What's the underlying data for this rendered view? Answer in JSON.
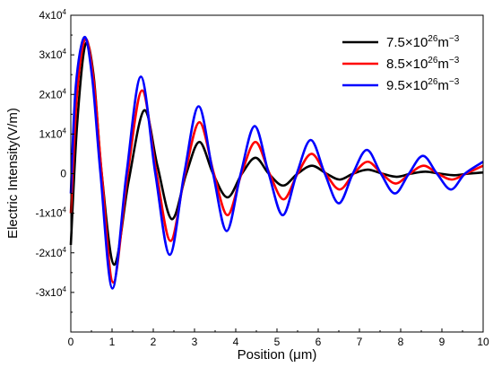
{
  "chart_data": {
    "type": "line",
    "xlabel": "Position (μm)",
    "ylabel": "Electric Intensity(V/m)",
    "xlim": [
      0,
      10
    ],
    "ylim": [
      -40000,
      40000
    ],
    "x_ticks": [
      {
        "value": 0,
        "label": "0"
      },
      {
        "value": 1,
        "label": "1"
      },
      {
        "value": 2,
        "label": "2"
      },
      {
        "value": 3,
        "label": "3"
      },
      {
        "value": 4,
        "label": "4"
      },
      {
        "value": 5,
        "label": "5"
      },
      {
        "value": 6,
        "label": "6"
      },
      {
        "value": 7,
        "label": "7"
      },
      {
        "value": 8,
        "label": "8"
      },
      {
        "value": 9,
        "label": "9"
      },
      {
        "value": 10,
        "label": "10"
      }
    ],
    "y_ticks": [
      {
        "value": 40000,
        "mant": "4x10",
        "exp": "4",
        "pre": ""
      },
      {
        "value": 30000,
        "mant": "3x10",
        "exp": "4",
        "pre": ""
      },
      {
        "value": 20000,
        "mant": "2x10",
        "exp": "4",
        "pre": ""
      },
      {
        "value": 10000,
        "mant": "1x10",
        "exp": "4",
        "pre": ""
      },
      {
        "value": 0,
        "mant": "0",
        "exp": "",
        "pre": ""
      },
      {
        "value": -10000,
        "mant": "-1x10",
        "exp": "4",
        "pre": ""
      },
      {
        "value": -20000,
        "mant": "-2x10",
        "exp": "4",
        "pre": ""
      },
      {
        "value": -30000,
        "mant": "-3x10",
        "exp": "4",
        "pre": ""
      }
    ],
    "grid": false,
    "legend_position": "top-right",
    "series": [
      {
        "name": "7.5×10²⁶m⁻³",
        "legend_base": "7.5×10",
        "legend_exp1": "26",
        "legend_unit": "m",
        "legend_exp2": "−3",
        "color": "#000000",
        "points": [
          [
            0,
            -18000
          ],
          [
            0.15,
            12000
          ],
          [
            0.35,
            32500
          ],
          [
            0.55,
            25000
          ],
          [
            0.75,
            0
          ],
          [
            1.05,
            -23000
          ],
          [
            1.4,
            -2000
          ],
          [
            1.78,
            16000
          ],
          [
            2.1,
            2000
          ],
          [
            2.45,
            -11500
          ],
          [
            2.8,
            0
          ],
          [
            3.12,
            8000
          ],
          [
            3.45,
            0
          ],
          [
            3.8,
            -6000
          ],
          [
            4.15,
            0
          ],
          [
            4.48,
            4000
          ],
          [
            4.8,
            0
          ],
          [
            5.15,
            -3000
          ],
          [
            5.5,
            0
          ],
          [
            5.85,
            2000
          ],
          [
            6.2,
            0
          ],
          [
            6.52,
            -1500
          ],
          [
            6.85,
            0
          ],
          [
            7.2,
            1000
          ],
          [
            7.55,
            0
          ],
          [
            7.9,
            -800
          ],
          [
            8.25,
            0
          ],
          [
            8.6,
            500
          ],
          [
            8.95,
            0
          ],
          [
            9.3,
            -400
          ],
          [
            9.65,
            0
          ],
          [
            10,
            300
          ]
        ]
      },
      {
        "name": "8.5×10²⁶m⁻³",
        "legend_base": "8.5×10",
        "legend_exp1": "26",
        "legend_unit": "m",
        "legend_exp2": "−3",
        "color": "#ff0000",
        "points": [
          [
            0,
            -10000
          ],
          [
            0.15,
            20000
          ],
          [
            0.35,
            34000
          ],
          [
            0.55,
            24000
          ],
          [
            0.75,
            0
          ],
          [
            1.03,
            -27500
          ],
          [
            1.38,
            0
          ],
          [
            1.73,
            21000
          ],
          [
            2.08,
            0
          ],
          [
            2.42,
            -17000
          ],
          [
            2.77,
            0
          ],
          [
            3.12,
            13000
          ],
          [
            3.47,
            0
          ],
          [
            3.8,
            -10500
          ],
          [
            4.14,
            0
          ],
          [
            4.48,
            8000
          ],
          [
            4.82,
            0
          ],
          [
            5.16,
            -6500
          ],
          [
            5.5,
            0
          ],
          [
            5.84,
            5000
          ],
          [
            6.18,
            0
          ],
          [
            6.52,
            -4000
          ],
          [
            6.86,
            0
          ],
          [
            7.2,
            3000
          ],
          [
            7.54,
            0
          ],
          [
            7.88,
            -2500
          ],
          [
            8.22,
            0
          ],
          [
            8.56,
            2000
          ],
          [
            8.9,
            0
          ],
          [
            9.24,
            -1500
          ],
          [
            9.58,
            0
          ],
          [
            10,
            2000
          ]
        ]
      },
      {
        "name": "9.5×10²⁶m⁻³",
        "legend_base": "9.5×10",
        "legend_exp1": "26",
        "legend_unit": "m",
        "legend_exp2": "−3",
        "color": "#0000ff",
        "points": [
          [
            0,
            -5000
          ],
          [
            0.12,
            22000
          ],
          [
            0.33,
            34500
          ],
          [
            0.52,
            24000
          ],
          [
            0.72,
            0
          ],
          [
            1.01,
            -29000
          ],
          [
            1.35,
            0
          ],
          [
            1.7,
            24500
          ],
          [
            2.05,
            0
          ],
          [
            2.4,
            -20500
          ],
          [
            2.75,
            0
          ],
          [
            3.1,
            17000
          ],
          [
            3.45,
            0
          ],
          [
            3.78,
            -14500
          ],
          [
            4.12,
            0
          ],
          [
            4.46,
            12000
          ],
          [
            4.8,
            0
          ],
          [
            5.14,
            -10500
          ],
          [
            5.48,
            0
          ],
          [
            5.82,
            8500
          ],
          [
            6.16,
            0
          ],
          [
            6.5,
            -7500
          ],
          [
            6.84,
            0
          ],
          [
            7.18,
            6000
          ],
          [
            7.52,
            0
          ],
          [
            7.86,
            -5000
          ],
          [
            8.2,
            0
          ],
          [
            8.54,
            4500
          ],
          [
            8.88,
            0
          ],
          [
            9.22,
            -4000
          ],
          [
            9.56,
            0
          ],
          [
            10,
            3000
          ]
        ]
      }
    ]
  }
}
